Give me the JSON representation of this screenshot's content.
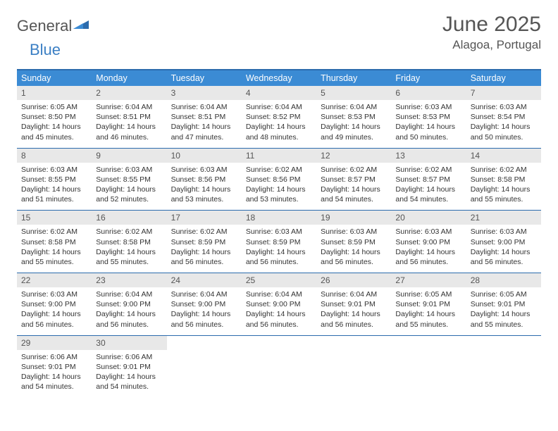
{
  "logo": {
    "general": "General",
    "blue": "Blue"
  },
  "title": "June 2025",
  "location": "Alagoa, Portugal",
  "colors": {
    "header_bg": "#3b8bd4",
    "border": "#2b6bad",
    "daynum_bg": "#e8e8e8",
    "text": "#333333",
    "logo_gray": "#555555",
    "logo_blue": "#3b7fc4"
  },
  "weekdays": [
    "Sunday",
    "Monday",
    "Tuesday",
    "Wednesday",
    "Thursday",
    "Friday",
    "Saturday"
  ],
  "weeks": [
    [
      {
        "n": "1",
        "sunrise": "6:05 AM",
        "sunset": "8:50 PM",
        "daylight": "14 hours and 45 minutes."
      },
      {
        "n": "2",
        "sunrise": "6:04 AM",
        "sunset": "8:51 PM",
        "daylight": "14 hours and 46 minutes."
      },
      {
        "n": "3",
        "sunrise": "6:04 AM",
        "sunset": "8:51 PM",
        "daylight": "14 hours and 47 minutes."
      },
      {
        "n": "4",
        "sunrise": "6:04 AM",
        "sunset": "8:52 PM",
        "daylight": "14 hours and 48 minutes."
      },
      {
        "n": "5",
        "sunrise": "6:04 AM",
        "sunset": "8:53 PM",
        "daylight": "14 hours and 49 minutes."
      },
      {
        "n": "6",
        "sunrise": "6:03 AM",
        "sunset": "8:53 PM",
        "daylight": "14 hours and 50 minutes."
      },
      {
        "n": "7",
        "sunrise": "6:03 AM",
        "sunset": "8:54 PM",
        "daylight": "14 hours and 50 minutes."
      }
    ],
    [
      {
        "n": "8",
        "sunrise": "6:03 AM",
        "sunset": "8:55 PM",
        "daylight": "14 hours and 51 minutes."
      },
      {
        "n": "9",
        "sunrise": "6:03 AM",
        "sunset": "8:55 PM",
        "daylight": "14 hours and 52 minutes."
      },
      {
        "n": "10",
        "sunrise": "6:03 AM",
        "sunset": "8:56 PM",
        "daylight": "14 hours and 53 minutes."
      },
      {
        "n": "11",
        "sunrise": "6:02 AM",
        "sunset": "8:56 PM",
        "daylight": "14 hours and 53 minutes."
      },
      {
        "n": "12",
        "sunrise": "6:02 AM",
        "sunset": "8:57 PM",
        "daylight": "14 hours and 54 minutes."
      },
      {
        "n": "13",
        "sunrise": "6:02 AM",
        "sunset": "8:57 PM",
        "daylight": "14 hours and 54 minutes."
      },
      {
        "n": "14",
        "sunrise": "6:02 AM",
        "sunset": "8:58 PM",
        "daylight": "14 hours and 55 minutes."
      }
    ],
    [
      {
        "n": "15",
        "sunrise": "6:02 AM",
        "sunset": "8:58 PM",
        "daylight": "14 hours and 55 minutes."
      },
      {
        "n": "16",
        "sunrise": "6:02 AM",
        "sunset": "8:58 PM",
        "daylight": "14 hours and 55 minutes."
      },
      {
        "n": "17",
        "sunrise": "6:02 AM",
        "sunset": "8:59 PM",
        "daylight": "14 hours and 56 minutes."
      },
      {
        "n": "18",
        "sunrise": "6:03 AM",
        "sunset": "8:59 PM",
        "daylight": "14 hours and 56 minutes."
      },
      {
        "n": "19",
        "sunrise": "6:03 AM",
        "sunset": "8:59 PM",
        "daylight": "14 hours and 56 minutes."
      },
      {
        "n": "20",
        "sunrise": "6:03 AM",
        "sunset": "9:00 PM",
        "daylight": "14 hours and 56 minutes."
      },
      {
        "n": "21",
        "sunrise": "6:03 AM",
        "sunset": "9:00 PM",
        "daylight": "14 hours and 56 minutes."
      }
    ],
    [
      {
        "n": "22",
        "sunrise": "6:03 AM",
        "sunset": "9:00 PM",
        "daylight": "14 hours and 56 minutes."
      },
      {
        "n": "23",
        "sunrise": "6:04 AM",
        "sunset": "9:00 PM",
        "daylight": "14 hours and 56 minutes."
      },
      {
        "n": "24",
        "sunrise": "6:04 AM",
        "sunset": "9:00 PM",
        "daylight": "14 hours and 56 minutes."
      },
      {
        "n": "25",
        "sunrise": "6:04 AM",
        "sunset": "9:00 PM",
        "daylight": "14 hours and 56 minutes."
      },
      {
        "n": "26",
        "sunrise": "6:04 AM",
        "sunset": "9:01 PM",
        "daylight": "14 hours and 56 minutes."
      },
      {
        "n": "27",
        "sunrise": "6:05 AM",
        "sunset": "9:01 PM",
        "daylight": "14 hours and 55 minutes."
      },
      {
        "n": "28",
        "sunrise": "6:05 AM",
        "sunset": "9:01 PM",
        "daylight": "14 hours and 55 minutes."
      }
    ],
    [
      {
        "n": "29",
        "sunrise": "6:06 AM",
        "sunset": "9:01 PM",
        "daylight": "14 hours and 54 minutes."
      },
      {
        "n": "30",
        "sunrise": "6:06 AM",
        "sunset": "9:01 PM",
        "daylight": "14 hours and 54 minutes."
      },
      null,
      null,
      null,
      null,
      null
    ]
  ],
  "labels": {
    "sunrise": "Sunrise:",
    "sunset": "Sunset:",
    "daylight": "Daylight:"
  }
}
